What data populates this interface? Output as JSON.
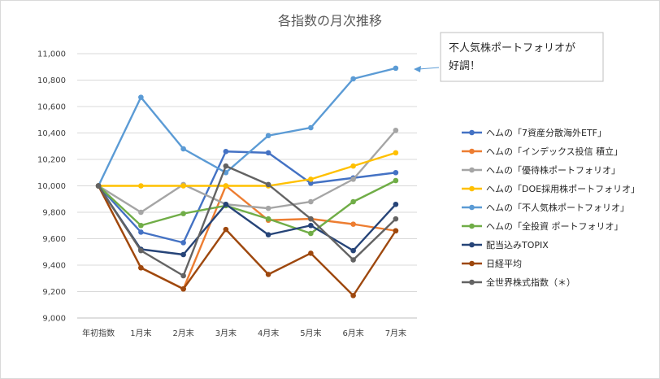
{
  "chart_data": {
    "type": "line",
    "title": "各指数の月次推移",
    "xlabel": "",
    "ylabel": "",
    "categories": [
      "年初指数",
      "1月末",
      "2月末",
      "3月末",
      "4月末",
      "5月末",
      "6月末",
      "7月末"
    ],
    "ylim": [
      9000,
      11000
    ],
    "yticks": [
      "9,000",
      "9,200",
      "9,400",
      "9,600",
      "9,800",
      "10,000",
      "10,200",
      "10,400",
      "10,600",
      "10,800",
      "11,000"
    ],
    "grid": true,
    "legend_position": "right",
    "series": [
      {
        "name": "ヘムの「7資産分散海外ETF」",
        "color": "#4472c4",
        "values": [
          10000,
          9650,
          9570,
          10260,
          10250,
          10020,
          10060,
          10100
        ]
      },
      {
        "name": "ヘムの「インデックス投信 積立」",
        "color": "#ed7d31",
        "values": [
          10000,
          9380,
          9220,
          10000,
          9740,
          9750,
          9710,
          9660
        ]
      },
      {
        "name": "ヘムの「優待株ポートフォリオ」",
        "color": "#a5a5a5",
        "values": [
          10000,
          9800,
          10010,
          9860,
          9830,
          9880,
          10050,
          10420
        ]
      },
      {
        "name": "ヘムの「DOE採用株ポートフォリオ」",
        "color": "#ffc000",
        "values": [
          10000,
          10000,
          10000,
          10000,
          10000,
          10050,
          10150,
          10250
        ]
      },
      {
        "name": "ヘムの「不人気株ポートフォリオ」",
        "color": "#5b9bd5",
        "values": [
          10000,
          10670,
          10280,
          10100,
          10380,
          10440,
          10810,
          10890
        ]
      },
      {
        "name": "ヘムの「全投資 ポートフォリオ」",
        "color": "#70ad47",
        "values": [
          10000,
          9700,
          9790,
          9850,
          9750,
          9640,
          9880,
          10040
        ]
      },
      {
        "name": "配当込みTOPIX",
        "color": "#264478",
        "values": [
          10000,
          9520,
          9480,
          9860,
          9630,
          9700,
          9510,
          9860
        ]
      },
      {
        "name": "日経平均",
        "color": "#9e480e",
        "values": [
          10000,
          9380,
          9220,
          9670,
          9330,
          9490,
          9170,
          9660
        ]
      },
      {
        "name": "全世界株式指数（＊）",
        "color": "#636363",
        "values": [
          10000,
          9510,
          9320,
          10150,
          10010,
          9750,
          9440,
          9750
        ]
      }
    ],
    "annotation": {
      "lines": [
        "不人気株ポートフォリオが",
        "好調！"
      ]
    }
  }
}
